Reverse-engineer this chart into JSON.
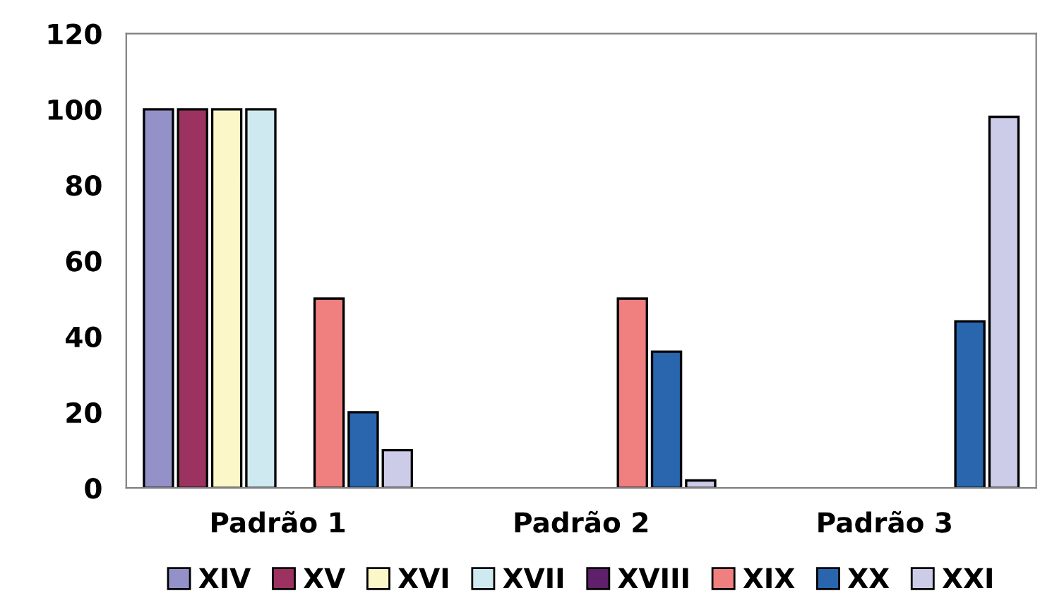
{
  "chart_data": {
    "type": "bar",
    "categories": [
      "Padrão 1",
      "Padrão 2",
      "Padrão 3"
    ],
    "series": [
      {
        "name": "XIV",
        "color": "#9491c8",
        "values": [
          100,
          0,
          0
        ]
      },
      {
        "name": "XV",
        "color": "#9b3260",
        "values": [
          100,
          0,
          0
        ]
      },
      {
        "name": "XVI",
        "color": "#fbf7c9",
        "values": [
          100,
          0,
          0
        ]
      },
      {
        "name": "XVII",
        "color": "#cfe9f0",
        "values": [
          100,
          0,
          0
        ]
      },
      {
        "name": "XVIII",
        "color": "#5f1f6b",
        "values": [
          0,
          0,
          0
        ]
      },
      {
        "name": "XIX",
        "color": "#f08080",
        "values": [
          50,
          50,
          0
        ]
      },
      {
        "name": "XX",
        "color": "#2966ae",
        "values": [
          20,
          36,
          44
        ]
      },
      {
        "name": "XXI",
        "color": "#cccce8",
        "values": [
          10,
          2,
          98
        ]
      }
    ],
    "ylim": [
      0,
      120
    ],
    "yticks": [
      0,
      20,
      40,
      60,
      80,
      100,
      120
    ],
    "grid": false,
    "legend": "bottom"
  }
}
